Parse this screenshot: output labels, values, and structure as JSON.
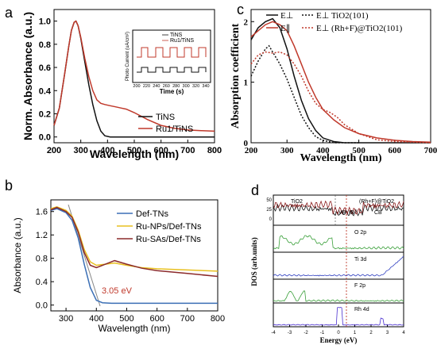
{
  "colors": {
    "black": "#111111",
    "red": "#c0392b",
    "blue": "#3b6fb5",
    "yellow": "#e8c020",
    "darkred": "#8b2a2a",
    "green": "#3aa03a",
    "violet": "#4a2fd0",
    "navy": "#3040c0",
    "maroon": "#8b1a1a"
  },
  "chart_data": [
    {
      "panel": "a",
      "type": "line",
      "xlabel": "Wavelength (nm)",
      "ylabel": "Norm. Absorbance (a.u.)",
      "xlim": [
        200,
        800
      ],
      "ylim": [
        -0.05,
        1.1
      ],
      "xticks": [
        "200",
        "300",
        "400",
        "500",
        "600",
        "700",
        "800"
      ],
      "yticks": [
        "0.0",
        "0.2",
        "0.4",
        "0.6",
        "0.8",
        "1.0"
      ],
      "series": [
        {
          "name": "TiNS",
          "color": "black",
          "x": [
            200,
            220,
            240,
            255,
            265,
            275,
            282,
            290,
            300,
            315,
            330,
            345,
            360,
            375,
            390,
            410,
            450,
            500,
            600,
            700,
            800
          ],
          "y": [
            0.1,
            0.25,
            0.55,
            0.78,
            0.92,
            0.99,
            1.0,
            0.96,
            0.85,
            0.65,
            0.45,
            0.28,
            0.14,
            0.05,
            0.01,
            0.0,
            0.0,
            0.0,
            0.0,
            0.0,
            0.0
          ]
        },
        {
          "name": "Ru1/TiNS",
          "color": "red",
          "x": [
            200,
            220,
            240,
            255,
            265,
            275,
            282,
            290,
            300,
            315,
            330,
            345,
            360,
            375,
            390,
            410,
            430,
            450,
            470,
            500,
            550,
            600,
            650,
            700,
            750,
            800
          ],
          "y": [
            0.1,
            0.25,
            0.55,
            0.78,
            0.92,
            0.99,
            1.0,
            0.96,
            0.86,
            0.68,
            0.52,
            0.4,
            0.32,
            0.29,
            0.28,
            0.27,
            0.26,
            0.25,
            0.24,
            0.21,
            0.15,
            0.1,
            0.075,
            0.06,
            0.055,
            0.05
          ]
        }
      ],
      "inset": {
        "xlabel": "Time (s)",
        "ylabel": "Photo Current (uA/cm²)",
        "xticks": [
          "200",
          "220",
          "240",
          "260",
          "280",
          "300",
          "320",
          "340"
        ],
        "legend": [
          "TiNS",
          "Ru1/TiNS"
        ]
      }
    },
    {
      "panel": "b",
      "type": "line",
      "xlabel": "Wavelength (nm)",
      "ylabel": "Absorbance (a.u.)",
      "xlim": [
        250,
        800
      ],
      "ylim": [
        -0.1,
        1.8
      ],
      "xticks": [
        "300",
        "400",
        "500",
        "600",
        "700",
        "800"
      ],
      "yticks": [
        "0.0",
        "0.4",
        "0.8",
        "1.2",
        "1.6"
      ],
      "annotation": "3.05 eV",
      "series": [
        {
          "name": "Def-TNs",
          "color": "blue",
          "x": [
            250,
            270,
            300,
            320,
            340,
            360,
            380,
            400,
            420,
            450,
            500,
            600,
            700,
            800
          ],
          "y": [
            1.62,
            1.65,
            1.58,
            1.45,
            1.15,
            0.7,
            0.3,
            0.08,
            0.04,
            0.03,
            0.03,
            0.03,
            0.03,
            0.03
          ]
        },
        {
          "name": "Ru-NPs/Def-TNs",
          "color": "yellow",
          "x": [
            250,
            270,
            300,
            320,
            340,
            360,
            380,
            400,
            430,
            460,
            500,
            550,
            600,
            700,
            800
          ],
          "y": [
            1.65,
            1.68,
            1.62,
            1.52,
            1.28,
            0.95,
            0.74,
            0.68,
            0.7,
            0.72,
            0.68,
            0.64,
            0.62,
            0.6,
            0.58
          ]
        },
        {
          "name": "Ru-SAs/Def-TNs",
          "color": "darkred",
          "x": [
            250,
            270,
            300,
            320,
            340,
            360,
            380,
            400,
            430,
            460,
            500,
            550,
            600,
            700,
            800
          ],
          "y": [
            1.63,
            1.67,
            1.6,
            1.5,
            1.25,
            0.9,
            0.68,
            0.64,
            0.7,
            0.76,
            0.7,
            0.63,
            0.59,
            0.54,
            0.49
          ]
        }
      ]
    },
    {
      "panel": "c",
      "type": "line",
      "xlabel": "Wavelength (nm)",
      "ylabel": "Absorption coefficient",
      "xlim": [
        200,
        700
      ],
      "ylim": [
        0,
        2.2
      ],
      "xticks": [
        "200",
        "300",
        "400",
        "500",
        "600",
        "700"
      ],
      "yticks": [
        "0",
        "1",
        "2"
      ],
      "legend": [
        "E⊥",
        "E∥",
        "E⊥ TiO2(101)",
        "E⊥ (Rh+F)@TiO2(101)"
      ],
      "series": [
        {
          "name": "E⊥ TiO2(101) solid",
          "color": "black",
          "x": [
            200,
            220,
            240,
            260,
            280,
            300,
            320,
            340,
            360,
            380,
            400,
            430,
            460,
            500,
            600,
            700
          ],
          "y": [
            1.7,
            1.9,
            2.0,
            2.05,
            1.9,
            1.55,
            1.1,
            0.7,
            0.4,
            0.2,
            0.08,
            0.02,
            0.0,
            0.0,
            0.0,
            0.0
          ]
        },
        {
          "name": "E∥ (Rh+F)@TiO2(101) solid",
          "color": "red",
          "x": [
            200,
            220,
            240,
            260,
            280,
            300,
            320,
            340,
            360,
            380,
            400,
            430,
            460,
            500,
            550,
            600,
            650,
            700
          ],
          "y": [
            1.75,
            1.85,
            1.95,
            2.0,
            1.95,
            1.85,
            1.6,
            1.3,
            1.0,
            0.75,
            0.55,
            0.38,
            0.25,
            0.15,
            0.08,
            0.04,
            0.02,
            0.01
          ]
        },
        {
          "name": "E⊥ TiO2(101) dotted",
          "color": "black",
          "x": [
            200,
            220,
            240,
            250,
            260,
            280,
            300,
            320,
            340,
            360,
            380,
            400,
            430,
            460,
            500
          ],
          "y": [
            1.1,
            1.35,
            1.55,
            1.6,
            1.5,
            1.3,
            1.05,
            0.75,
            0.45,
            0.25,
            0.1,
            0.04,
            0.0,
            0.0,
            0.0
          ]
        },
        {
          "name": "E⊥ (Rh+F)@TiO2(101) dotted",
          "color": "red",
          "x": [
            200,
            220,
            240,
            260,
            280,
            300,
            320,
            340,
            360,
            380,
            400,
            420,
            440,
            460,
            500,
            550,
            600,
            700
          ],
          "y": [
            1.3,
            1.45,
            1.5,
            1.48,
            1.5,
            1.45,
            1.3,
            1.1,
            0.85,
            0.65,
            0.55,
            0.5,
            0.42,
            0.3,
            0.15,
            0.05,
            0.02,
            0.0
          ]
        }
      ]
    },
    {
      "panel": "d",
      "type": "line",
      "xlabel": "Energy (eV)",
      "ylabel": "DOS (arb.units)",
      "xlim": [
        -4,
        4
      ],
      "xticks": [
        "-4",
        "-3",
        "-2",
        "-1",
        "0",
        "1",
        "2",
        "3",
        "4"
      ],
      "top_labels": [
        "TiO2",
        "(Rh+F)@TiO2",
        "VB",
        "IB",
        "CB"
      ],
      "subpanels": [
        "O 2p",
        "Ti 3d",
        "F 2p",
        "Rh 4d"
      ],
      "top_yticks": [
        "50",
        "25",
        "0"
      ]
    }
  ],
  "panels": {
    "a": "a",
    "b": "b",
    "c": "c",
    "d": "d"
  },
  "inset_legend": {
    "l1": "TiNS",
    "l2": "Ru1/TiNS"
  }
}
